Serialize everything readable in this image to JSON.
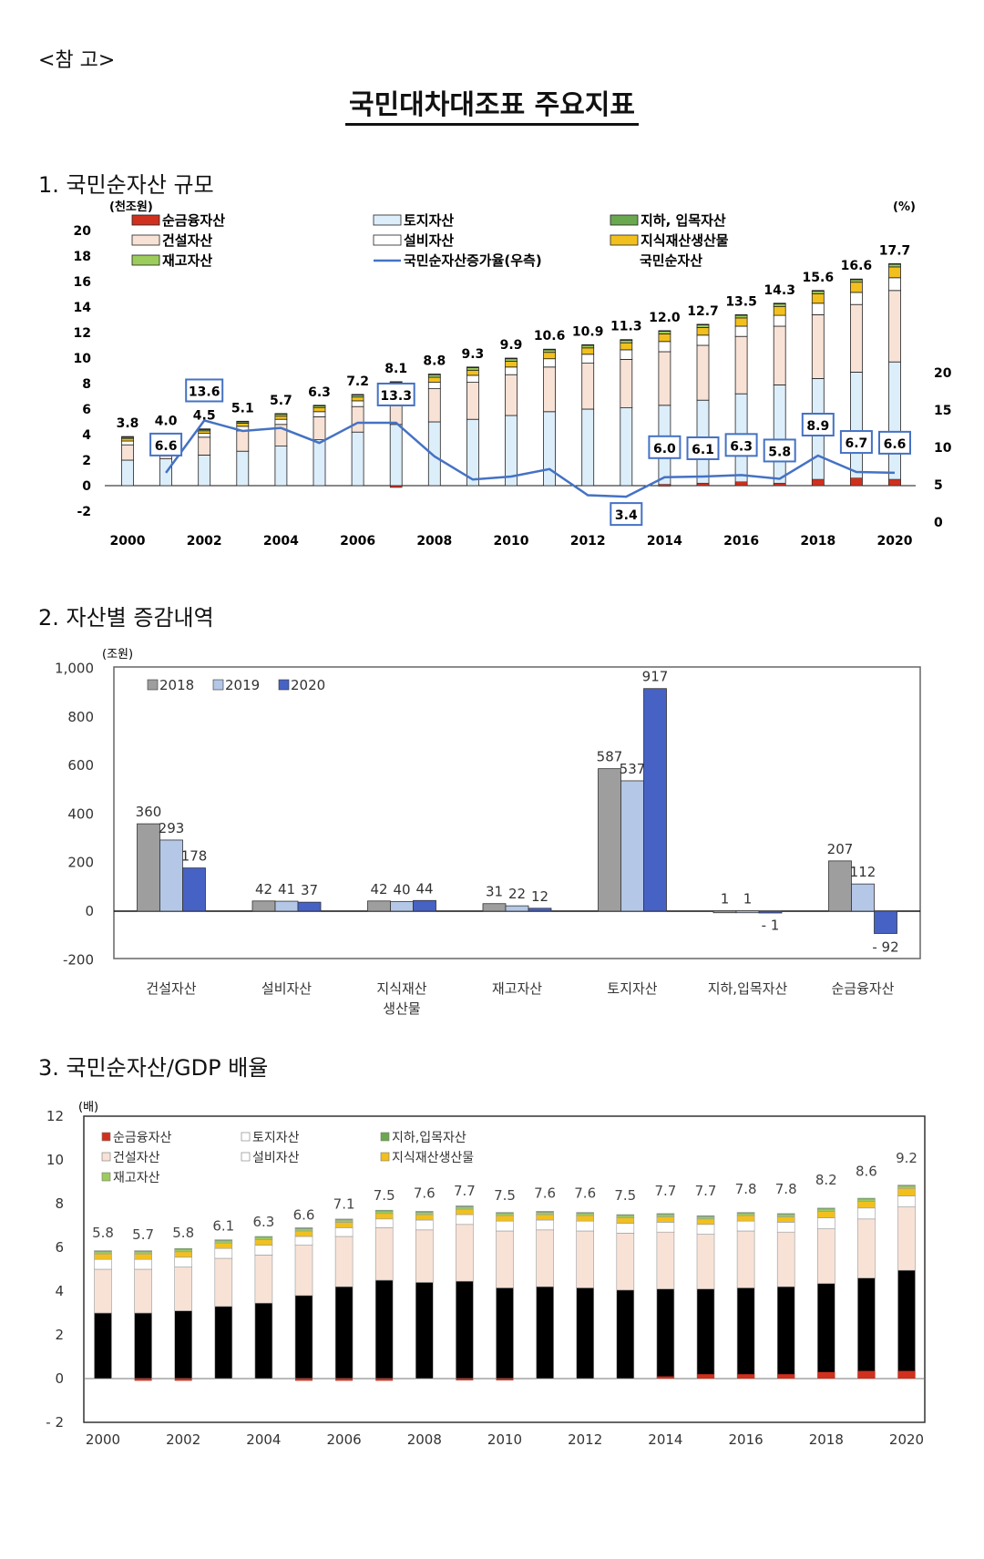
{
  "ref_label": "<참 고>",
  "doc_title": "국민대차대조표 주요지표",
  "sections": [
    {
      "title": "1. 국민순자산 규모"
    },
    {
      "title": "2. 자산별 증감내역"
    },
    {
      "title": "3. 국민순자산/GDP 배율"
    }
  ],
  "colors": {
    "net_financial": "#d0301e",
    "construction": "#f8e2d6",
    "inventory": "#9ccc5c",
    "land": "#ddeefb",
    "equipment": "#ffffff",
    "underground": "#6aa84f",
    "ip": "#f2c01e",
    "line": "#4472c4",
    "c2018": "#9e9e9e",
    "c2019": "#b4c7e7",
    "c2020": "#4662c4"
  },
  "chart_data": [
    {
      "type": "bar",
      "stacked": true,
      "title": "",
      "ylabel": "(천조원)",
      "y2label": "(%)",
      "ylim": [
        -2,
        20
      ],
      "y2lim": [
        0,
        20
      ],
      "grid": false,
      "legend_position": "top",
      "x": [
        2000,
        2001,
        2002,
        2003,
        2004,
        2005,
        2006,
        2007,
        2008,
        2009,
        2010,
        2011,
        2012,
        2013,
        2014,
        2015,
        2016,
        2017,
        2018,
        2019,
        2020
      ],
      "x_tick_labels": [
        "2000",
        "2002",
        "2004",
        "2006",
        "2008",
        "2010",
        "2012",
        "2014",
        "2016",
        "2018",
        "2020"
      ],
      "y_tick_labels": [
        "20",
        "18",
        "16",
        "14",
        "12",
        "10",
        "8",
        "6",
        "4",
        "2",
        "0",
        "-2"
      ],
      "y2_tick_labels": [
        "20",
        "15",
        "10",
        "5",
        "0"
      ],
      "legend": [
        "순금융자산",
        "토지자산",
        "지하, 입목자산",
        "건설자산",
        "설비자산",
        "지식재산생산물",
        "재고자산",
        "국민순자산증가율(우측)",
        "국민순자산"
      ],
      "totals": [
        3.8,
        4.0,
        4.5,
        5.1,
        5.7,
        6.3,
        7.2,
        8.1,
        8.8,
        9.3,
        9.9,
        10.6,
        10.9,
        11.3,
        12.0,
        12.7,
        13.5,
        14.3,
        15.6,
        16.6,
        17.7
      ],
      "series": [
        {
          "name": "순금융자산",
          "values": [
            0,
            0,
            0,
            0,
            0,
            0,
            0,
            -0.1,
            0,
            0,
            0,
            0,
            0,
            0,
            0.1,
            0.2,
            0.3,
            0.2,
            0.5,
            0.6,
            0.5
          ]
        },
        {
          "name": "토지자산",
          "values": [
            2.0,
            2.1,
            2.4,
            2.7,
            3.1,
            3.6,
            4.2,
            4.8,
            5.0,
            5.2,
            5.5,
            5.8,
            6.0,
            6.1,
            6.3,
            6.7,
            7.2,
            7.9,
            8.4,
            8.9,
            9.7
          ]
        },
        {
          "name": "건설자산",
          "values": [
            1.2,
            1.3,
            1.4,
            1.6,
            1.7,
            1.8,
            2.0,
            2.3,
            2.6,
            2.9,
            3.2,
            3.5,
            3.6,
            3.8,
            4.2,
            4.3,
            4.5,
            4.6,
            5.0,
            5.3,
            5.6
          ]
        },
        {
          "name": "설비자산",
          "values": [
            0.3,
            0.3,
            0.3,
            0.35,
            0.4,
            0.4,
            0.45,
            0.5,
            0.5,
            0.55,
            0.6,
            0.65,
            0.7,
            0.75,
            0.8,
            0.8,
            0.8,
            0.85,
            0.9,
            0.95,
            1.0
          ]
        },
        {
          "name": "지식재산생산물",
          "values": [
            0.2,
            0.2,
            0.2,
            0.25,
            0.25,
            0.3,
            0.3,
            0.35,
            0.4,
            0.4,
            0.45,
            0.5,
            0.5,
            0.55,
            0.6,
            0.6,
            0.65,
            0.7,
            0.75,
            0.8,
            0.85
          ]
        },
        {
          "name": "재고자산",
          "values": [
            0.1,
            0.1,
            0.1,
            0.1,
            0.15,
            0.15,
            0.15,
            0.15,
            0.2,
            0.2,
            0.2,
            0.2,
            0.2,
            0.2,
            0.2,
            0.2,
            0.2,
            0.2,
            0.2,
            0.2,
            0.2
          ]
        },
        {
          "name": "지하, 입목자산",
          "values": [
            0.05,
            0.05,
            0.05,
            0.05,
            0.05,
            0.05,
            0.05,
            0.05,
            0.05,
            0.05,
            0.05,
            0.05,
            0.05,
            0.05,
            0.05,
            0.05,
            0.05,
            0.05,
            0.05,
            0.05,
            0.05
          ]
        }
      ],
      "growth_rate": [
        null,
        6.6,
        13.6,
        12.2,
        12.6,
        10.6,
        13.3,
        13.3,
        8.8,
        5.7,
        6.1,
        7.1,
        3.6,
        3.4,
        6.0,
        6.1,
        6.3,
        5.8,
        8.9,
        6.7,
        6.6
      ],
      "growth_labels": [
        {
          "x": 2001,
          "label": "6.6"
        },
        {
          "x": 2002,
          "label": "13.6"
        },
        {
          "x": 2007,
          "label": "13.3"
        },
        {
          "x": 2013,
          "label": "3.4"
        },
        {
          "x": 2014,
          "label": "6.0"
        },
        {
          "x": 2015,
          "label": "6.1"
        },
        {
          "x": 2016,
          "label": "6.3"
        },
        {
          "x": 2017,
          "label": "5.8"
        },
        {
          "x": 2018,
          "label": "8.9"
        },
        {
          "x": 2019,
          "label": "6.7"
        },
        {
          "x": 2020,
          "label": "6.6"
        }
      ]
    },
    {
      "type": "bar",
      "title": "",
      "ylabel": "(조원)",
      "ylim": [
        -200,
        1000
      ],
      "y_tick_labels": [
        "1,000",
        "800",
        "600",
        "400",
        "200",
        "0",
        "-200"
      ],
      "legend_position": "top-left",
      "categories": [
        "건설자산",
        "설비자산",
        "지식재산\n생산물",
        "재고자산",
        "토지자산",
        "지하,입목자산",
        "순금융자산"
      ],
      "series": [
        {
          "name": "2018",
          "values": [
            360,
            42,
            42,
            31,
            587,
            1,
            207
          ],
          "labels": [
            "360",
            "42",
            "42",
            "31",
            "587",
            "1",
            "207"
          ]
        },
        {
          "name": "2019",
          "values": [
            293,
            41,
            40,
            22,
            537,
            1,
            112
          ],
          "labels": [
            "293",
            "41",
            "40",
            "22",
            "537",
            "1",
            "112"
          ]
        },
        {
          "name": "2020",
          "values": [
            178,
            37,
            44,
            12,
            917,
            -1,
            -92
          ],
          "labels": [
            "178",
            "37",
            "44",
            "12",
            "917",
            "- 1",
            "- 92"
          ]
        }
      ]
    },
    {
      "type": "bar",
      "stacked": true,
      "title": "",
      "ylabel": "(배)",
      "ylim": [
        -2,
        12
      ],
      "y_tick_labels": [
        "12",
        "10",
        "8",
        "6",
        "4",
        "2",
        "0",
        "- 2"
      ],
      "x_tick_labels": [
        "2000",
        "2002",
        "2004",
        "2006",
        "2008",
        "2010",
        "2012",
        "2014",
        "2016",
        "2018",
        "2020"
      ],
      "legend": [
        "순금융자산",
        "토지자산",
        "지하,입목자산",
        "건설자산",
        "설비자산",
        "지식재산생산물",
        "재고자산"
      ],
      "x": [
        2000,
        2001,
        2002,
        2003,
        2004,
        2005,
        2006,
        2007,
        2008,
        2009,
        2010,
        2011,
        2012,
        2013,
        2014,
        2015,
        2016,
        2017,
        2018,
        2019,
        2020
      ],
      "totals": [
        5.8,
        5.7,
        5.8,
        6.1,
        6.3,
        6.6,
        7.1,
        7.5,
        7.6,
        7.7,
        7.5,
        7.6,
        7.6,
        7.5,
        7.7,
        7.7,
        7.8,
        7.8,
        8.2,
        8.6,
        9.2
      ],
      "total_labels": [
        "5.8",
        "5.7",
        "5.8",
        "6.1",
        "6.3",
        "6.6",
        "7.1",
        "7.5",
        "7.6",
        "7.7",
        "7.5",
        "7.6",
        "7.6",
        "7.5",
        "7.7",
        "7.7",
        "7.8",
        "7.8",
        "8.2",
        "8.6",
        "9.2"
      ],
      "series": [
        {
          "name": "순금융자산",
          "values": [
            0,
            -0.1,
            -0.1,
            0,
            0,
            -0.1,
            -0.1,
            -0.1,
            0,
            -0.05,
            -0.05,
            0,
            0,
            0,
            0.1,
            0.2,
            0.2,
            0.2,
            0.3,
            0.35,
            0.35
          ]
        },
        {
          "name": "토지자산",
          "values": [
            3.0,
            3.0,
            3.1,
            3.3,
            3.45,
            3.8,
            4.2,
            4.5,
            4.4,
            4.45,
            4.15,
            4.2,
            4.15,
            4.05,
            4.1,
            4.1,
            4.15,
            4.2,
            4.35,
            4.6,
            4.95
          ]
        },
        {
          "name": "건설자산",
          "values": [
            2.0,
            2.0,
            2.0,
            2.2,
            2.2,
            2.3,
            2.3,
            2.4,
            2.4,
            2.6,
            2.6,
            2.6,
            2.6,
            2.6,
            2.6,
            2.5,
            2.6,
            2.5,
            2.5,
            2.7,
            2.9
          ]
        },
        {
          "name": "설비자산",
          "values": [
            0.45,
            0.45,
            0.45,
            0.45,
            0.45,
            0.4,
            0.4,
            0.4,
            0.45,
            0.45,
            0.45,
            0.45,
            0.45,
            0.45,
            0.45,
            0.45,
            0.45,
            0.45,
            0.5,
            0.5,
            0.5
          ]
        },
        {
          "name": "지식재산생산물",
          "values": [
            0.25,
            0.25,
            0.25,
            0.25,
            0.25,
            0.25,
            0.25,
            0.25,
            0.25,
            0.25,
            0.25,
            0.25,
            0.25,
            0.25,
            0.25,
            0.25,
            0.25,
            0.25,
            0.3,
            0.3,
            0.35
          ]
        },
        {
          "name": "재고자산",
          "values": [
            0.1,
            0.1,
            0.1,
            0.1,
            0.1,
            0.1,
            0.1,
            0.1,
            0.1,
            0.1,
            0.1,
            0.1,
            0.1,
            0.1,
            0.1,
            0.1,
            0.1,
            0.1,
            0.1,
            0.1,
            0.1
          ]
        },
        {
          "name": "지하,입목자산",
          "values": [
            0.05,
            0.05,
            0.05,
            0.05,
            0.05,
            0.05,
            0.05,
            0.05,
            0.05,
            0.05,
            0.05,
            0.05,
            0.05,
            0.05,
            0.05,
            0.05,
            0.05,
            0.05,
            0.05,
            0.05,
            0.05
          ]
        }
      ]
    }
  ]
}
